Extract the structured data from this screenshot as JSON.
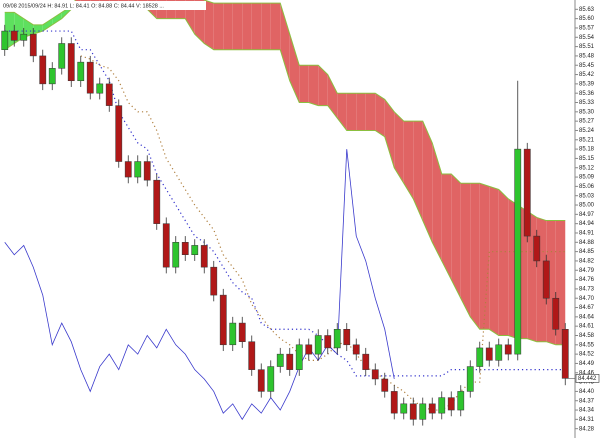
{
  "chart_data": {
    "type": "candlestick",
    "title": "09/08 2015/09/24 H: 84.91 L: 84.41 O: 84.88 C: 84.44 V: 18528 ...",
    "ylim": [
      84.25,
      85.66
    ],
    "yticks": [
      85.63,
      {
        "value": 85.6,
        "label": "85.60"
      },
      85.57,
      85.54,
      85.51,
      85.48,
      85.45,
      85.42,
      85.39,
      85.36,
      85.33,
      {
        "value": 85.3,
        "label": "85.30"
      },
      85.27,
      85.24,
      85.21,
      85.18,
      85.15,
      85.12,
      85.09,
      85.06,
      85.03,
      {
        "value": 85,
        "label": "85.00"
      },
      84.97,
      84.94,
      84.91,
      84.88,
      84.85,
      84.82,
      84.79,
      84.76,
      84.73,
      {
        "value": 84.7,
        "label": "84.70"
      },
      84.67,
      84.64,
      84.61,
      84.58,
      84.55,
      84.52,
      84.49,
      84.46,
      84.43,
      {
        "value": 84.4,
        "label": "84.40"
      },
      84.37,
      84.34,
      84.31,
      84.28
    ],
    "up_color": "#2ec42e",
    "down_color": "#b01818",
    "open": [
      85.5,
      85.56,
      85.53,
      85.55,
      85.48,
      85.39,
      85.44,
      85.52,
      85.4,
      85.46,
      85.36,
      85.39,
      85.32,
      85.14,
      85.09,
      85.14,
      85.08,
      84.94,
      84.8,
      84.88,
      84.84,
      84.87,
      84.8,
      84.71,
      84.55,
      84.62,
      84.56,
      84.47,
      84.4,
      84.48,
      84.52,
      84.47,
      84.55,
      84.52,
      84.58,
      84.54,
      84.6,
      84.55,
      84.52,
      84.47,
      84.44,
      84.4,
      84.33,
      84.36,
      84.31,
      84.36,
      84.33,
      84.38,
      84.34,
      84.4,
      84.48,
      84.54,
      84.5,
      84.55,
      84.52,
      85.18,
      84.9,
      84.82,
      84.7,
      84.6
    ],
    "high": [
      85.58,
      85.58,
      85.57,
      85.57,
      85.5,
      85.46,
      85.54,
      85.54,
      85.48,
      85.48,
      85.41,
      85.41,
      85.34,
      85.16,
      85.16,
      85.16,
      85.1,
      84.96,
      84.9,
      84.9,
      84.89,
      84.89,
      84.82,
      84.73,
      84.64,
      84.64,
      84.58,
      84.49,
      84.5,
      84.54,
      84.54,
      84.57,
      84.57,
      84.6,
      84.6,
      84.62,
      84.62,
      84.57,
      84.54,
      84.49,
      84.46,
      84.42,
      84.38,
      84.38,
      84.38,
      84.38,
      84.4,
      84.4,
      84.42,
      84.5,
      84.56,
      84.56,
      84.57,
      84.57,
      85.4,
      85.2,
      84.92,
      84.84,
      84.72,
      84.62
    ],
    "low": [
      85.48,
      85.51,
      85.51,
      85.46,
      85.37,
      85.37,
      85.42,
      85.38,
      85.38,
      85.34,
      85.34,
      85.3,
      85.12,
      85.07,
      85.07,
      85.06,
      84.92,
      84.78,
      84.78,
      84.82,
      84.82,
      84.78,
      84.69,
      84.53,
      84.53,
      84.54,
      84.45,
      84.38,
      84.38,
      84.46,
      84.45,
      84.45,
      84.5,
      84.5,
      84.52,
      84.52,
      84.53,
      84.5,
      84.45,
      84.42,
      84.38,
      84.31,
      84.31,
      84.29,
      84.29,
      84.31,
      84.31,
      84.32,
      84.32,
      84.38,
      84.46,
      84.48,
      84.48,
      84.5,
      84.5,
      84.88,
      84.8,
      84.68,
      84.58,
      84.42
    ],
    "close": [
      85.56,
      85.53,
      85.55,
      85.48,
      85.39,
      85.44,
      85.52,
      85.4,
      85.46,
      85.36,
      85.39,
      85.32,
      85.14,
      85.09,
      85.14,
      85.08,
      84.94,
      84.8,
      84.88,
      84.84,
      84.87,
      84.8,
      84.71,
      84.55,
      84.62,
      84.56,
      84.47,
      84.4,
      84.48,
      84.52,
      84.47,
      84.55,
      84.52,
      84.58,
      84.54,
      84.6,
      84.55,
      84.52,
      84.47,
      84.44,
      84.4,
      84.33,
      84.36,
      84.31,
      84.36,
      84.33,
      84.38,
      84.34,
      84.4,
      84.48,
      84.54,
      84.5,
      84.55,
      84.52,
      85.18,
      84.9,
      84.82,
      84.7,
      84.6,
      84.442
    ],
    "cloud": {
      "up_color": "#5ee05e",
      "down_color": "#e06464",
      "edge_color": "#8bbf3f",
      "span_a": [
        85.62,
        85.62,
        85.6,
        85.58,
        85.58,
        85.6,
        85.62,
        85.64,
        85.64,
        85.64,
        85.64,
        85.64,
        85.64,
        85.64,
        85.64,
        85.63,
        85.6,
        85.6,
        85.6,
        85.6,
        85.55,
        85.52,
        85.5,
        85.5,
        85.5,
        85.5,
        85.5,
        85.5,
        85.5,
        85.5,
        85.4,
        85.33,
        85.33,
        85.32,
        85.32,
        85.28,
        85.24,
        85.24,
        85.24,
        85.24,
        85.22,
        85.12,
        85.07,
        85.02,
        84.95,
        84.88,
        84.82,
        84.76,
        84.7,
        84.64,
        84.6,
        84.6,
        84.58,
        84.58,
        84.57,
        84.57,
        84.56,
        84.56,
        84.55,
        84.55
      ],
      "span_b": [
        85.5,
        85.52,
        85.54,
        85.55,
        85.56,
        85.58,
        85.6,
        85.63,
        85.7,
        85.7,
        85.7,
        85.7,
        85.7,
        85.7,
        85.7,
        85.7,
        85.7,
        85.7,
        85.7,
        85.7,
        85.68,
        85.66,
        85.65,
        85.65,
        85.65,
        85.65,
        85.65,
        85.65,
        85.65,
        85.65,
        85.55,
        85.45,
        85.45,
        85.45,
        85.42,
        85.36,
        85.36,
        85.36,
        85.36,
        85.36,
        85.34,
        85.3,
        85.27,
        85.27,
        85.27,
        85.2,
        85.1,
        85.1,
        85.07,
        85.07,
        85.07,
        85.06,
        85.05,
        85.02,
        85.0,
        84.98,
        84.96,
        84.95,
        84.95,
        84.95
      ]
    },
    "lines": [
      {
        "color": "#3333cc",
        "style": "dotted",
        "values": [
          85.56,
          85.56,
          85.56,
          85.56,
          85.56,
          85.56,
          85.56,
          85.56,
          85.5,
          85.5,
          85.45,
          85.4,
          85.3,
          85.25,
          85.2,
          85.18,
          85.1,
          85.05,
          85.0,
          84.95,
          84.9,
          84.88,
          84.85,
          84.8,
          84.75,
          84.72,
          84.7,
          84.62,
          84.6,
          84.6,
          84.6,
          84.6,
          84.6,
          84.58,
          84.55,
          84.52,
          84.5,
          84.45,
          84.45,
          84.45,
          84.45,
          84.45,
          84.45,
          84.45,
          84.45,
          84.45,
          84.45,
          84.47,
          84.47,
          84.47,
          84.47,
          84.47,
          84.47,
          84.47,
          84.47,
          84.47,
          84.47,
          84.47,
          84.47,
          84.47
        ]
      },
      {
        "color": "#b08040",
        "style": "dotted",
        "values": [
          null,
          null,
          null,
          null,
          null,
          null,
          null,
          null,
          85.48,
          85.47,
          85.45,
          85.44,
          85.4,
          85.33,
          85.3,
          85.3,
          85.24,
          85.15,
          85.1,
          85.05,
          85.0,
          84.96,
          84.92,
          84.84,
          84.8,
          84.76,
          84.68,
          84.64,
          84.6,
          84.57,
          84.55,
          84.52,
          84.5,
          84.5,
          84.52,
          84.55,
          84.56,
          84.52,
          84.48,
          84.46,
          84.44,
          84.42,
          84.4,
          84.37,
          84.35,
          84.34,
          84.34,
          84.36,
          84.4,
          84.43,
          84.43,
          84.85,
          84.85,
          84.85,
          84.85,
          84.85,
          84.85,
          84.85,
          84.85,
          84.85
        ]
      },
      {
        "color": "#3a3acc",
        "style": "solid",
        "values": [
          84.88,
          84.84,
          84.87,
          84.8,
          84.71,
          84.55,
          84.62,
          84.56,
          84.47,
          84.4,
          84.48,
          84.52,
          84.47,
          84.55,
          84.52,
          84.58,
          84.54,
          84.6,
          84.55,
          84.52,
          84.47,
          84.44,
          84.4,
          84.33,
          84.36,
          84.31,
          84.36,
          84.33,
          84.38,
          84.34,
          84.4,
          84.48,
          84.54,
          84.5,
          84.55,
          84.52,
          85.18,
          84.9,
          84.82,
          84.7,
          84.6,
          84.44,
          null,
          null,
          null,
          null,
          null,
          null,
          null,
          null,
          null,
          null,
          null,
          null,
          null,
          null,
          null,
          null,
          null,
          null
        ]
      }
    ]
  }
}
